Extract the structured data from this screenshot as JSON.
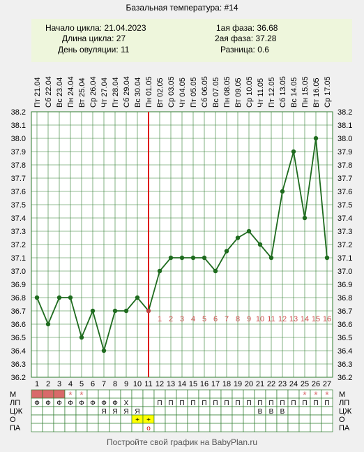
{
  "title": "Базальная температура: #14",
  "info": {
    "cycle_start": "Начало цикла: 21.04.2023",
    "cycle_length": "Длина цикла: 27",
    "ovulation_day": "День овуляции: 11",
    "phase1": "1ая фаза: 36.68",
    "phase2": "2ая фаза: 37.28",
    "difference": "Разница: 0.6"
  },
  "footer": "Постройте свой график на BabyPlan.ru",
  "colors": {
    "line": "#1e6b1e",
    "point": "#1e6b1e",
    "ovulation_line": "#dd0000",
    "post_ov_label": "#d05050",
    "menstruation": "#d96a6a",
    "grid": "#2e7d2e",
    "plus_bg": "#ffff00"
  },
  "chart_data": {
    "type": "line",
    "ylim": [
      36.2,
      38.2
    ],
    "y_ticks": [
      "36.2",
      "36.3",
      "36.4",
      "36.5",
      "36.6",
      "36.7",
      "36.8",
      "36.9",
      "37.0",
      "37.1",
      "37.2",
      "37.3",
      "37.4",
      "37.5",
      "37.6",
      "37.7",
      "37.8",
      "37.9",
      "38.0",
      "38.1",
      "38.2"
    ],
    "days": [
      1,
      2,
      3,
      4,
      5,
      6,
      7,
      8,
      9,
      10,
      11,
      12,
      13,
      14,
      15,
      16,
      17,
      18,
      19,
      20,
      21,
      22,
      23,
      24,
      25,
      26,
      27
    ],
    "dates": [
      "Пт 21.04",
      "Сб 22.04",
      "Вс 23.04",
      "Пн 24.04",
      "Вт 25.04",
      "Ср 26.04",
      "Чт 27.04",
      "Пт 28.04",
      "Сб 29.04",
      "Вс 30.04",
      "Пн 01.05",
      "Вт 02.05",
      "Ср 03.05",
      "Чт 04.05",
      "Пт 05.05",
      "Сб 06.05",
      "Вс 07.05",
      "Пн 08.05",
      "Вт 09.05",
      "Ср 10.05",
      "Чт 11.05",
      "Пт 12.05",
      "Сб 13.05",
      "Вс 14.05",
      "Пн 15.05",
      "Вт 16.05",
      "Ср 17.05"
    ],
    "temperatures": [
      36.8,
      36.6,
      36.8,
      36.8,
      36.5,
      36.7,
      36.4,
      36.7,
      36.7,
      36.8,
      36.7,
      37.0,
      37.1,
      37.1,
      37.1,
      37.1,
      37.0,
      37.15,
      37.25,
      37.3,
      37.2,
      37.1,
      37.6,
      37.9,
      37.4,
      38.0,
      37.1
    ],
    "ovulation_day": 11,
    "post_ovulation_labels": [
      "1",
      "2",
      "3",
      "4",
      "5",
      "6",
      "7",
      "8",
      "9",
      "10",
      "11",
      "12",
      "13",
      "14",
      "15",
      "16"
    ],
    "rows": [
      {
        "label": "М",
        "menstruation_days": [
          1,
          2,
          3
        ],
        "cells": [
          "",
          "",
          "",
          "*",
          "*",
          "",
          "",
          "",
          "",
          "",
          "",
          "",
          "",
          "",
          "",
          "",
          "",
          "",
          "",
          "",
          "",
          "",
          "",
          "",
          "*",
          "*",
          "*"
        ]
      },
      {
        "label": "ЛП",
        "cells": [
          "Ф",
          "Ф",
          "Ф",
          "Ф",
          "Ф",
          "Ф",
          "Ф",
          "Ф",
          "Х",
          "",
          "",
          "П",
          "П",
          "П",
          "П",
          "П",
          "П",
          "П",
          "П",
          "П",
          "П",
          "П",
          "П",
          "П",
          "П",
          "П",
          "П"
        ]
      },
      {
        "label": "ЦЖ",
        "cells": [
          "",
          "",
          "",
          "",
          "",
          "",
          "Я",
          "Я",
          "Я",
          "Я",
          "",
          "",
          "",
          "",
          "",
          "",
          "",
          "",
          "",
          "",
          "В",
          "В",
          "В",
          "",
          "",
          "",
          ""
        ]
      },
      {
        "label": "О",
        "cells": [
          "",
          "",
          "",
          "",
          "",
          "",
          "",
          "",
          "",
          "+",
          "+",
          "",
          "",
          "",
          "",
          "",
          "",
          "",
          "",
          "",
          "",
          "",
          "",
          "",
          "",
          "",
          ""
        ],
        "highlighted_days": [
          10,
          11
        ]
      },
      {
        "label": "ПА",
        "cells": [
          "",
          "",
          "",
          "",
          "",
          "",
          "",
          "",
          "",
          "",
          "о",
          "",
          "",
          "",
          "",
          "",
          "",
          "",
          "",
          "",
          "",
          "",
          "",
          "",
          "",
          "",
          ""
        ]
      }
    ]
  }
}
